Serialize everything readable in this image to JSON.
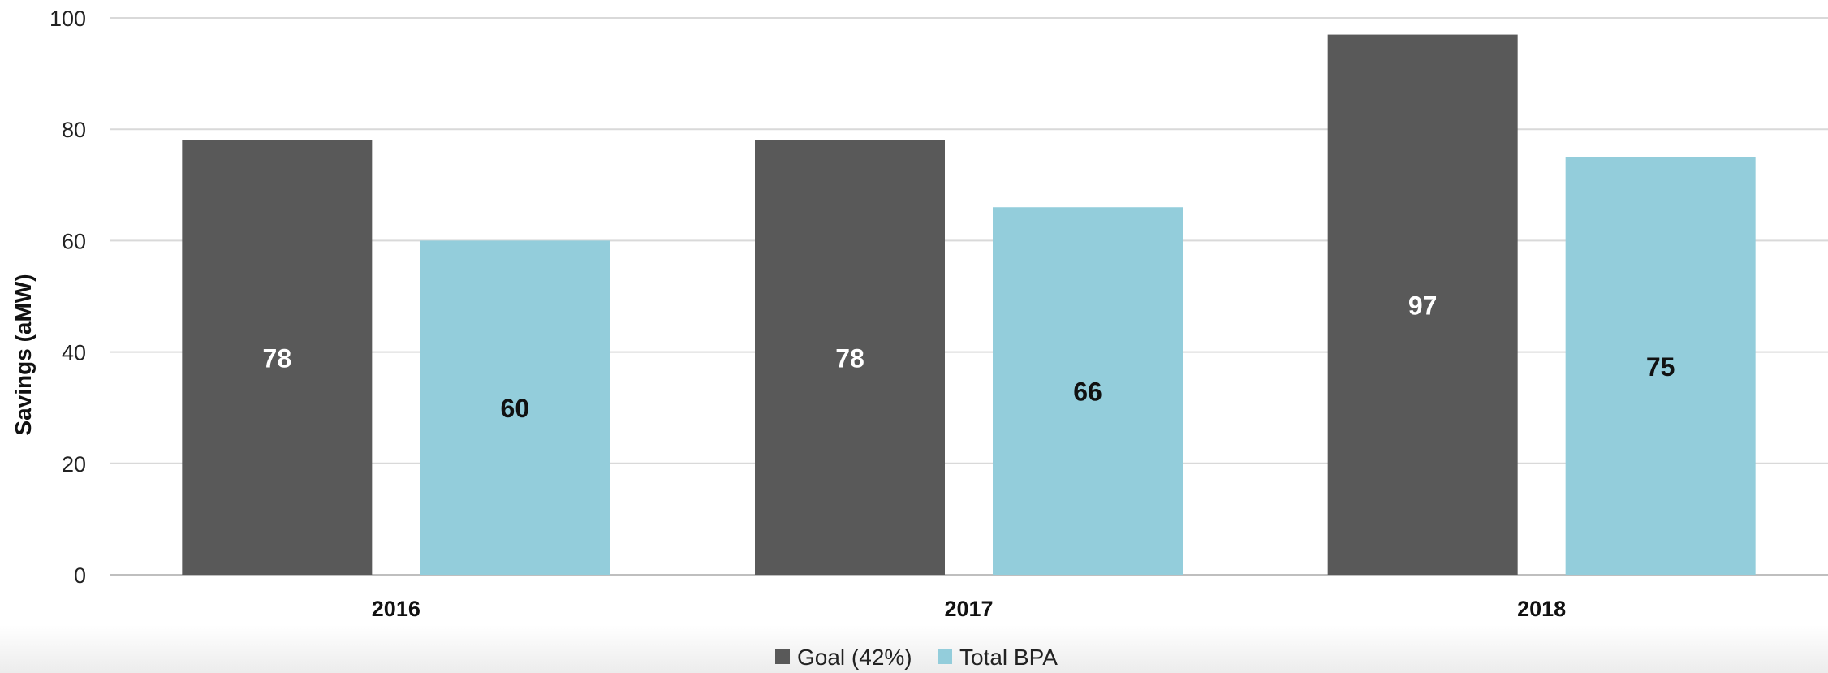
{
  "chart_data": {
    "type": "bar",
    "categories": [
      "2016",
      "2017",
      "2018"
    ],
    "series": [
      {
        "name": "Goal (42%)",
        "values": [
          78,
          78,
          97
        ],
        "color": "#595959",
        "label_color": "#ffffff"
      },
      {
        "name": "Total BPA",
        "values": [
          60,
          66,
          75
        ],
        "color": "#93cddb",
        "label_color": "#111111"
      }
    ],
    "ylabel": "Savings (aMW)",
    "xlabel": "",
    "ylim": [
      0,
      100
    ],
    "yticks": [
      0,
      20,
      40,
      60,
      80,
      100
    ],
    "grid": true,
    "legend_position": "bottom-center",
    "data_labels": true
  }
}
